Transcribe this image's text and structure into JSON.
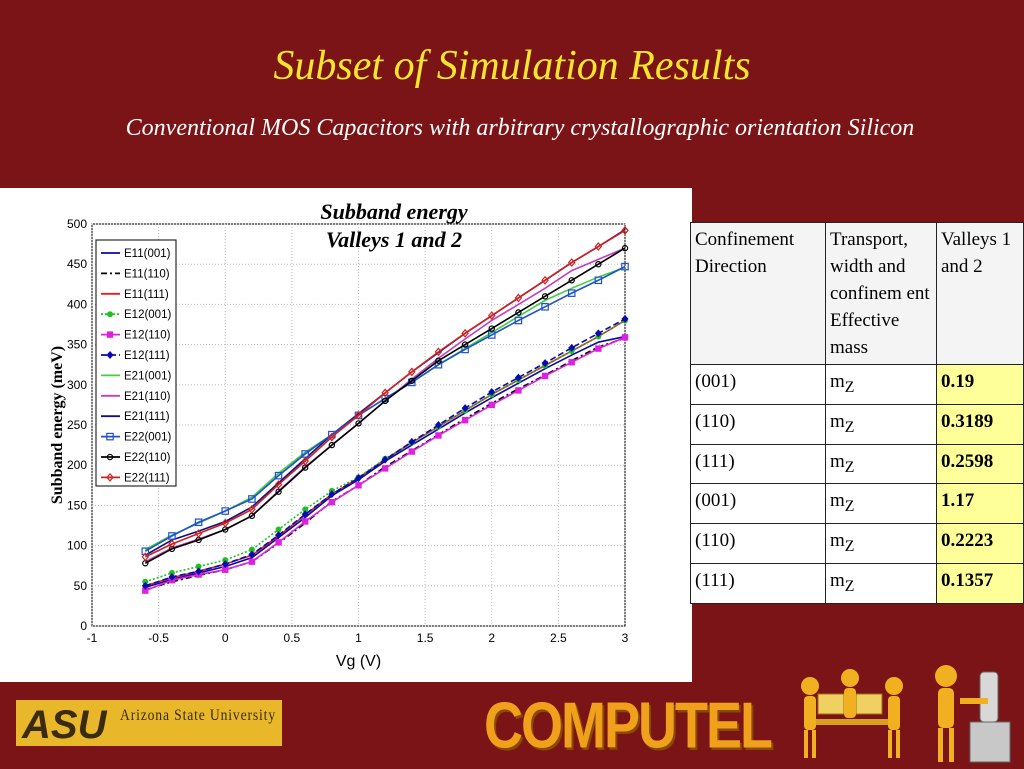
{
  "slide": {
    "title": "Subset of Simulation Results",
    "subtitle": "Conventional MOS Capacitors with arbitrary crystallographic orientation Silicon"
  },
  "chart_caption": {
    "line1": "Subband energy",
    "line2": "Valleys 1 and 2"
  },
  "chart_data": {
    "type": "line",
    "xlabel": "Vg (V)",
    "ylabel": "Subband energy (meV)",
    "xlim": [
      -1,
      3
    ],
    "ylim": [
      0,
      500
    ],
    "xticks": [
      "-1",
      "-0.5",
      "0",
      "0.5",
      "1",
      "1.5",
      "2",
      "2.5",
      "3"
    ],
    "yticks": [
      "0",
      "50",
      "100",
      "150",
      "200",
      "250",
      "300",
      "350",
      "400",
      "450",
      "500"
    ],
    "grid": true,
    "legend_position": "top-left",
    "x": [
      -0.6,
      -0.4,
      -0.2,
      0,
      0.2,
      0.4,
      0.6,
      0.8,
      1.0,
      1.2,
      1.4,
      1.6,
      1.8,
      2.0,
      2.2,
      2.4,
      2.6,
      2.8,
      3.0
    ],
    "series": [
      {
        "name": "E11(001)",
        "color": "#0a0aa0",
        "dash": "",
        "marker": "none",
        "values": [
          48,
          58,
          66,
          74,
          85,
          110,
          135,
          162,
          182,
          205,
          225,
          245,
          265,
          284,
          302,
          320,
          337,
          353,
          360
        ]
      },
      {
        "name": "E11(110)",
        "color": "#000000",
        "dash": "6,3,2,3",
        "marker": "none",
        "values": [
          45,
          55,
          63,
          70,
          80,
          103,
          128,
          155,
          175,
          198,
          218,
          238,
          258,
          277,
          295,
          312,
          330,
          347,
          358
        ]
      },
      {
        "name": "E11(111)",
        "color": "#e02020",
        "dash": "",
        "marker": "none",
        "values": [
          50,
          60,
          68,
          77,
          88,
          112,
          138,
          164,
          184,
          207,
          228,
          248,
          268,
          288,
          306,
          324,
          342,
          360,
          380
        ]
      },
      {
        "name": "E12(001)",
        "color": "#20c020",
        "dash": "2,2",
        "marker": "dot",
        "values": [
          55,
          66,
          74,
          82,
          95,
          120,
          145,
          168,
          185,
          208,
          228,
          248,
          268,
          288,
          306,
          324,
          342,
          360,
          380
        ]
      },
      {
        "name": "E12(110)",
        "color": "#e020e0",
        "dash": "",
        "marker": "square-filled",
        "values": [
          44,
          57,
          64,
          70,
          80,
          104,
          130,
          154,
          175,
          196,
          217,
          237,
          256,
          275,
          293,
          311,
          328,
          345,
          359
        ]
      },
      {
        "name": "E12(111)",
        "color": "#0a0ab0",
        "dash": "6,3",
        "marker": "diamond-filled",
        "values": [
          50,
          61,
          68,
          77,
          89,
          113,
          139,
          164,
          184,
          207,
          229,
          250,
          271,
          291,
          309,
          327,
          346,
          364,
          382
        ]
      },
      {
        "name": "E21(001)",
        "color": "#40d040",
        "dash": "",
        "marker": "none",
        "values": [
          95,
          113,
          128,
          143,
          160,
          190,
          216,
          238,
          262,
          283,
          303,
          325,
          345,
          365,
          385,
          405,
          420,
          434,
          446
        ]
      },
      {
        "name": "E21(110)",
        "color": "#c040c0",
        "dash": "",
        "marker": "none",
        "values": [
          80,
          97,
          108,
          120,
          137,
          168,
          198,
          225,
          252,
          280,
          307,
          333,
          357,
          380,
          400,
          420,
          442,
          456,
          470
        ]
      },
      {
        "name": "E21(111)",
        "color": "#101080",
        "dash": "",
        "marker": "none",
        "values": [
          88,
          107,
          118,
          130,
          148,
          178,
          208,
          238,
          264,
          290,
          316,
          340,
          364,
          386,
          408,
          430,
          452,
          472,
          493
        ]
      },
      {
        "name": "E22(001)",
        "color": "#2050d0",
        "dash": "",
        "marker": "square-open",
        "values": [
          93,
          112,
          129,
          143,
          158,
          187,
          214,
          238,
          262,
          283,
          303,
          325,
          344,
          362,
          380,
          397,
          414,
          430,
          447
        ]
      },
      {
        "name": "E22(110)",
        "color": "#000000",
        "dash": "",
        "marker": "circle-open",
        "values": [
          78,
          96,
          107,
          120,
          137,
          167,
          197,
          225,
          252,
          280,
          305,
          330,
          350,
          370,
          390,
          410,
          430,
          450,
          470
        ]
      },
      {
        "name": "E22(111)",
        "color": "#d02020",
        "dash": "",
        "marker": "diamond-open",
        "values": [
          86,
          102,
          115,
          128,
          145,
          176,
          205,
          235,
          262,
          290,
          316,
          341,
          364,
          386,
          408,
          430,
          452,
          472,
          492
        ]
      }
    ]
  },
  "mass_table": {
    "headers": [
      "Confinement Direction",
      "Transport, width and confinem ent Effective mass",
      "Valleys 1 and 2"
    ],
    "rows": [
      {
        "direction": "(001)",
        "mass": "m",
        "sub": "Z",
        "value": "0.19"
      },
      {
        "direction": "(110)",
        "mass": "m",
        "sub": "Z",
        "value": "0.3189"
      },
      {
        "direction": "(111)",
        "mass": "m",
        "sub": "Z",
        "value": "0.2598"
      },
      {
        "direction": "(001)",
        "mass": "m",
        "sub": "Z",
        "value": "1.17"
      },
      {
        "direction": "(110)",
        "mass": "m",
        "sub": "Z",
        "value": "0.2223"
      },
      {
        "direction": "(111)",
        "mass": "m",
        "sub": "Z",
        "value": "0.1357"
      }
    ]
  },
  "footer": {
    "university": "Arizona State University",
    "asu": "ASU",
    "brand": "COMPUTEL"
  },
  "colors": {
    "background": "#7b1416",
    "title": "#f5e62c",
    "highlight": "#ffff99"
  }
}
